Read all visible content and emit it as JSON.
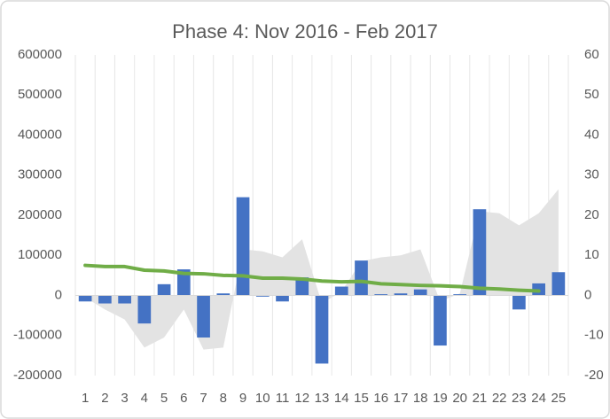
{
  "chart_data": {
    "type": "combo",
    "title": "Phase 4: Nov 2016 - Feb 2017",
    "categories": [
      "1",
      "2",
      "3",
      "4",
      "5",
      "6",
      "7",
      "8",
      "9",
      "10",
      "11",
      "12",
      "13",
      "14",
      "15",
      "16",
      "17",
      "18",
      "19",
      "20",
      "21",
      "22",
      "23",
      "24",
      "25"
    ],
    "series": [
      {
        "kind": "area",
        "color": "#e3e3e3",
        "values": [
          -5000,
          -35000,
          -60000,
          -130000,
          -105000,
          -35000,
          -135000,
          -130000,
          115000,
          110000,
          95000,
          140000,
          -20000,
          10000,
          85000,
          95000,
          100000,
          115000,
          -15000,
          5000,
          210000,
          205000,
          175000,
          205000,
          265000
        ]
      },
      {
        "kind": "bar",
        "color": "#4472c4",
        "values": [
          -15000,
          -20000,
          -20000,
          -70000,
          28000,
          65000,
          -105000,
          5000,
          245000,
          -3000,
          -15000,
          45000,
          -170000,
          22000,
          87000,
          3000,
          5000,
          15000,
          -125000,
          3000,
          215000,
          0,
          -35000,
          30000,
          58000
        ]
      },
      {
        "kind": "line",
        "axis": "y2",
        "color": "#70ad47",
        "values": [
          7.5,
          7.2,
          7.2,
          6.3,
          6.1,
          5.5,
          5.4,
          5.0,
          4.9,
          4.3,
          4.3,
          4.1,
          3.6,
          3.4,
          3.5,
          2.9,
          2.7,
          2.5,
          2.4,
          2.2,
          1.8,
          1.6,
          1.3,
          1.1,
          null
        ]
      }
    ],
    "ylim": [
      -200000,
      600000
    ],
    "yticks": [
      600000,
      500000,
      400000,
      300000,
      200000,
      100000,
      0,
      -100000,
      -200000
    ],
    "y2lim": [
      -20,
      60
    ],
    "y2ticks": [
      60,
      50,
      40,
      30,
      20,
      10,
      0,
      -10,
      -20
    ],
    "grid": "vertical"
  }
}
